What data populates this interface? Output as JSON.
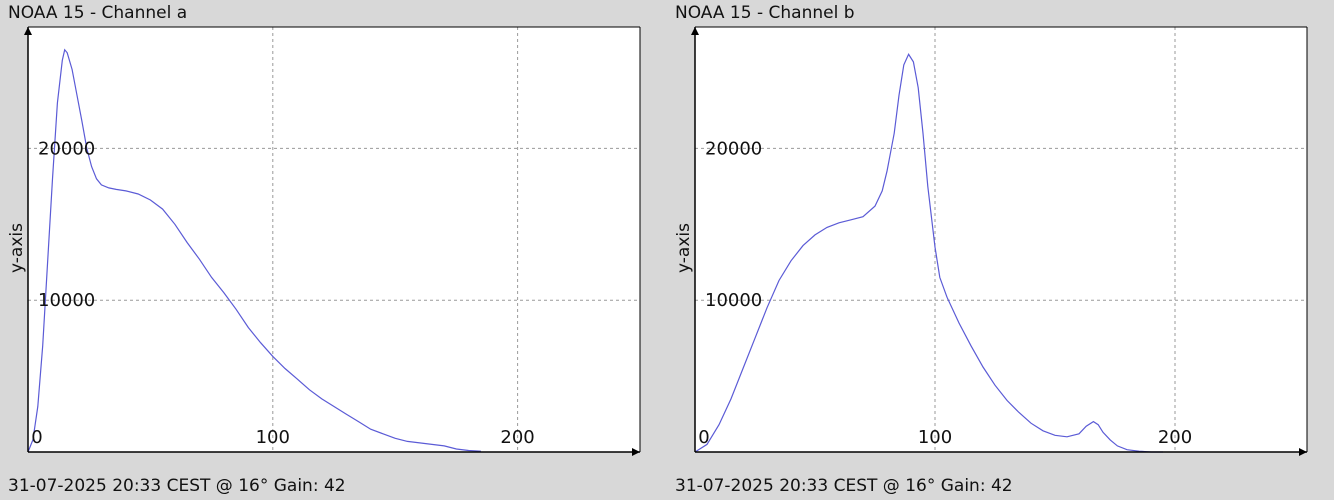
{
  "chart_data": [
    {
      "type": "line",
      "title": "NOAA 15 - Channel a",
      "footer": "31-07-2025 20:33 CEST @ 16° Gain: 42",
      "ylabel": "y-axis",
      "xlabel": "",
      "xlim": [
        0,
        250
      ],
      "ylim": [
        0,
        28000
      ],
      "grid": true,
      "x_ticks": [
        0,
        100,
        200
      ],
      "y_ticks": [
        10000,
        20000
      ],
      "series": [
        {
          "color": "#5b5bd6",
          "x": [
            0,
            2,
            4,
            6,
            8,
            10,
            12,
            14,
            15,
            16,
            18,
            20,
            22,
            24,
            26,
            28,
            30,
            33,
            36,
            40,
            45,
            50,
            55,
            60,
            65,
            70,
            75,
            80,
            85,
            90,
            95,
            100,
            105,
            110,
            115,
            120,
            125,
            130,
            135,
            140,
            145,
            150,
            155,
            160,
            165,
            170,
            175,
            180,
            185
          ],
          "y": [
            0,
            800,
            3000,
            7000,
            12500,
            18000,
            23000,
            25800,
            26500,
            26300,
            25200,
            23500,
            21800,
            20000,
            18800,
            18000,
            17600,
            17400,
            17300,
            17200,
            17000,
            16600,
            16000,
            15000,
            13800,
            12700,
            11500,
            10500,
            9400,
            8200,
            7200,
            6300,
            5500,
            4800,
            4100,
            3500,
            3000,
            2500,
            2000,
            1500,
            1200,
            900,
            700,
            600,
            500,
            400,
            200,
            100,
            50
          ]
        }
      ]
    },
    {
      "type": "line",
      "title": "NOAA 15 - Channel b",
      "footer": "31-07-2025 20:33 CEST @ 16° Gain: 42",
      "ylabel": "y-axis",
      "xlabel": "",
      "xlim": [
        0,
        255
      ],
      "ylim": [
        0,
        28000
      ],
      "grid": true,
      "x_ticks": [
        0,
        100,
        200
      ],
      "y_ticks": [
        10000,
        20000
      ],
      "series": [
        {
          "color": "#5b5bd6",
          "x": [
            0,
            5,
            10,
            15,
            20,
            25,
            30,
            35,
            40,
            45,
            50,
            55,
            60,
            65,
            70,
            75,
            78,
            80,
            83,
            85,
            87,
            89,
            91,
            93,
            95,
            97,
            100,
            102,
            105,
            110,
            115,
            120,
            125,
            130,
            135,
            140,
            145,
            150,
            155,
            160,
            163,
            166,
            168,
            170,
            173,
            176,
            180,
            185,
            190,
            195
          ],
          "y": [
            0,
            500,
            1800,
            3500,
            5500,
            7500,
            9500,
            11300,
            12600,
            13600,
            14300,
            14800,
            15100,
            15300,
            15500,
            16200,
            17200,
            18500,
            21000,
            23500,
            25500,
            26200,
            25700,
            24000,
            21000,
            17500,
            13500,
            11500,
            10200,
            8500,
            7000,
            5600,
            4400,
            3400,
            2600,
            1900,
            1400,
            1100,
            1000,
            1200,
            1700,
            2000,
            1800,
            1300,
            800,
            400,
            150,
            50,
            0,
            0
          ]
        }
      ]
    }
  ]
}
